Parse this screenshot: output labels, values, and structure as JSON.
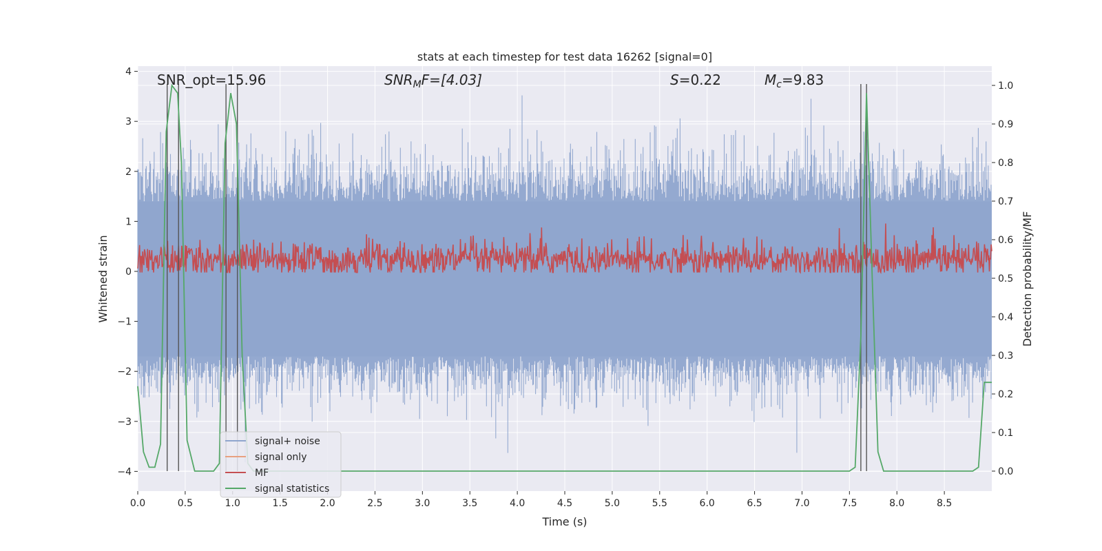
{
  "chart_data": {
    "type": "line",
    "title": "stats at each timestep for test data 16262 [signal=0]",
    "xlabel": "Time (s)",
    "ylabel_left": "Whitened strain",
    "ylabel_right": "Detection probability/MF",
    "xlim": [
      0.0,
      9.0
    ],
    "ylim_left": [
      -4.35,
      4.05
    ],
    "ylim_right": [
      -0.045,
      1.04
    ],
    "x_ticks": [
      "0.0",
      "0.5",
      "1.0",
      "1.5",
      "2.0",
      "2.5",
      "3.0",
      "3.5",
      "4.0",
      "4.5",
      "5.0",
      "5.5",
      "6.0",
      "6.5",
      "7.0",
      "7.5",
      "8.0",
      "8.5"
    ],
    "y_ticks_left": [
      "4",
      "3",
      "2",
      "1",
      "0",
      "−1",
      "−2",
      "−3",
      "−4"
    ],
    "y_ticks_right": [
      "1.0",
      "0.9",
      "0.8",
      "0.7",
      "0.6",
      "0.5",
      "0.4",
      "0.3",
      "0.2",
      "0.1",
      "0.0"
    ],
    "grid": true,
    "annotations": {
      "snr_opt": "SNR_opt=15.96",
      "snr_mf_prefix": "SNR",
      "snr_mf_sub": "M",
      "snr_mf_suffix": "F=[4.03]",
      "s_prefix": "S",
      "s_suffix": "=0.22",
      "mc_prefix": "M",
      "mc_sub": "c",
      "mc_suffix": "=9.83"
    },
    "legend": {
      "placement": "lower-left",
      "entries": [
        "signal+ noise",
        "signal only",
        "MF",
        "signal statistics"
      ]
    },
    "series": [
      {
        "name": "signal+ noise",
        "axis": "left",
        "color": "#8fa5cd",
        "description_range": [
          -4.0,
          3.7
        ],
        "typical_envelope": [
          -2.0,
          2.2
        ]
      },
      {
        "name": "signal only",
        "axis": "left",
        "color": "#e8a07f",
        "values_constant": 0.0
      },
      {
        "name": "MF",
        "axis": "right",
        "color": "#c44e52",
        "typical_range": [
          0.52,
          0.65
        ],
        "max": 0.65
      },
      {
        "name": "signal statistics",
        "axis": "right",
        "color": "#55a868",
        "x": [
          0.0,
          0.06,
          0.12,
          0.18,
          0.24,
          0.3,
          0.36,
          0.42,
          0.46,
          0.52,
          0.6,
          0.7,
          0.8,
          0.86,
          0.92,
          0.98,
          1.04,
          1.1,
          1.16,
          1.22,
          1.3,
          7.5,
          7.56,
          7.62,
          7.68,
          7.74,
          7.8,
          7.86,
          7.94,
          8.1,
          8.5,
          8.8,
          8.86,
          8.92,
          9.0
        ],
        "y": [
          0.22,
          0.05,
          0.01,
          0.01,
          0.07,
          0.88,
          1.0,
          0.98,
          0.8,
          0.08,
          0.0,
          0.0,
          0.0,
          0.02,
          0.85,
          0.98,
          0.9,
          0.3,
          0.02,
          0.0,
          0.0,
          0.0,
          0.01,
          0.35,
          0.98,
          0.5,
          0.05,
          0.0,
          0.0,
          0.0,
          0.0,
          0.0,
          0.01,
          0.23,
          0.23
        ]
      }
    ],
    "vertical_lines_x": [
      0.31,
      0.43,
      0.93,
      1.05,
      7.62,
      7.68
    ]
  }
}
